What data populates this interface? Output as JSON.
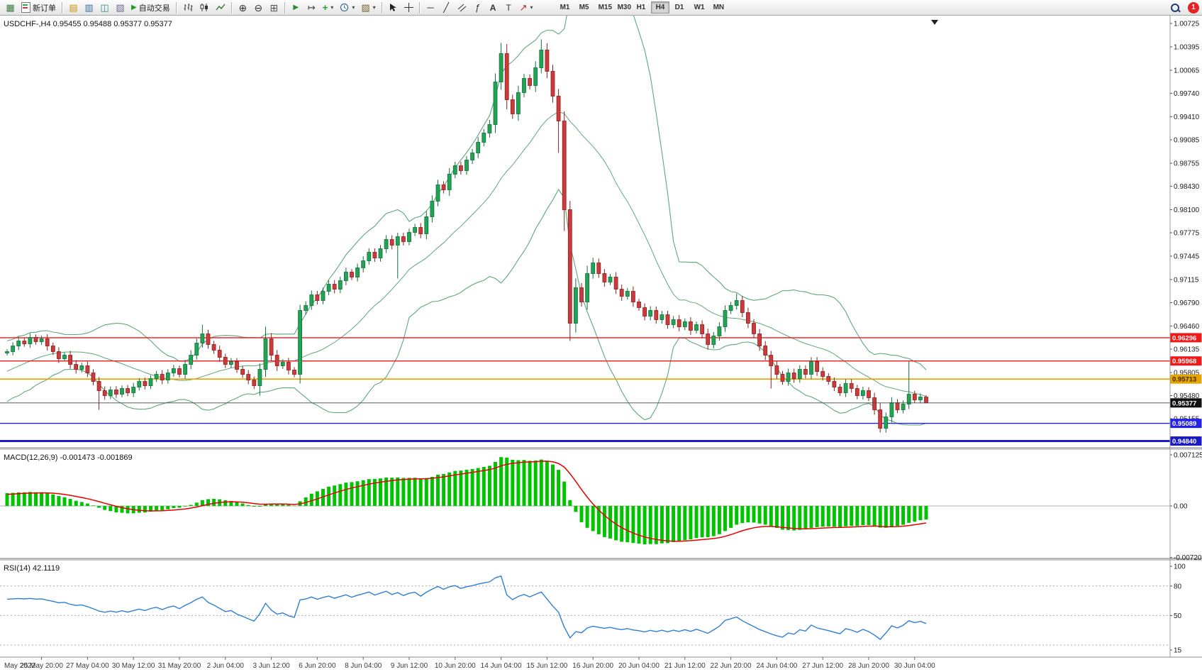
{
  "toolbar": {
    "new_order_label": "新订单",
    "auto_trading_label": "自动交易",
    "timeframes": [
      "M1",
      "M5",
      "M15",
      "M30",
      "H1",
      "H4",
      "D1",
      "W1",
      "MN"
    ],
    "active_timeframe": "H4",
    "notification_badge": "1",
    "icon_glyphs": {
      "new_chart": "▦",
      "profiles": "▤",
      "market_watch": "▥",
      "data_window": "◫",
      "navigator": "▧",
      "auto_play": "▶",
      "zoom_in": "⊕",
      "zoom_out": "⊖",
      "tile": "⊞",
      "auto_scroll": "▶",
      "shift": "↦",
      "indicators": "+",
      "templates": "▨",
      "hline": "─",
      "trend": "╱",
      "fibo": "ƒ",
      "text": "A",
      "label": "T",
      "arrows": "↗",
      "caret": "▾"
    }
  },
  "chart": {
    "title_line": "USDCHF-,H4  0.95455 0.95488 0.95377 0.95377",
    "macd_label_line": "MACD(12,26,9) -0.001473 -0.001869",
    "rsi_label_line": "RSI(14) 42.1119"
  },
  "chart_data": {
    "type": "candlestick",
    "symbol": "USDCHF-",
    "period": "H4",
    "ohlc_current": {
      "open": "0.95455",
      "high": "0.95488",
      "low": "0.95377",
      "close": "0.95377"
    },
    "ylim": [
      0.9474,
      1.0083
    ],
    "price_axis_labels": [
      "1.00725",
      "1.00395",
      "1.00065",
      "0.99740",
      "0.99410",
      "0.99085",
      "0.98755",
      "0.98430",
      "0.98100",
      "0.97775",
      "0.97445",
      "0.97115",
      "0.96790",
      "0.96460",
      "0.96135",
      "0.95805",
      "0.95480",
      "0.95155"
    ],
    "price_lines": [
      {
        "price": 0.96296,
        "label": "0.96296",
        "color": "#f01818",
        "width": 1.4,
        "text": "#ffffff"
      },
      {
        "price": 0.95968,
        "label": "0.95968",
        "color": "#f01818",
        "width": 1.4,
        "text": "#ffffff"
      },
      {
        "price": 0.95713,
        "label": "0.95713",
        "color": "#e8a400",
        "width": 1.7,
        "text": "#3a2b00"
      },
      {
        "price": 0.95089,
        "label": "0.95089",
        "color": "#2222e8",
        "width": 1.4,
        "text": "#ffffff"
      },
      {
        "price": 0.9484,
        "label": "0.94840",
        "color": "#1a1ac8",
        "width": 3.0,
        "text": "#ffffff"
      }
    ],
    "current_price": {
      "value": 0.95377,
      "label": "0.95377",
      "color": "#111111"
    },
    "bollinger": {
      "period": 20,
      "deviation": 2
    },
    "macd": {
      "name": "MACD(12,26,9)",
      "value": -0.001473,
      "signal_value": -0.001869,
      "fast": 12,
      "slow": 26,
      "signal": 9,
      "axis_labels": [
        "0.007125",
        "0.00",
        "-0.007201"
      ]
    },
    "rsi": {
      "name": "RSI(14)",
      "value": 42.1119,
      "period": 14,
      "axis_labels": [
        "100",
        "80",
        "50",
        "15"
      ],
      "levels": [
        80,
        50,
        20
      ]
    },
    "colors": {
      "up_fill": "#22a455",
      "up_stroke": "#11703a",
      "down_fill": "#cc3b3b",
      "down_stroke": "#8f1f1f",
      "bollinger": "#5da87a",
      "macd_hist": "#00c400",
      "macd_signal": "#e60000",
      "rsi_line": "#2d7fd6"
    },
    "time_axis_labels": [
      "May 2022",
      "25 May 20:00",
      "27 May 04:00",
      "30 May 12:00",
      "31 May 20:00",
      "2 Jun 04:00",
      "3 Jun 12:00",
      "6 Jun 20:00",
      "8 Jun 04:00",
      "9 Jun 12:00",
      "10 Jun 20:00",
      "14 Jun 04:00",
      "15 Jun 12:00",
      "16 Jun 20:00",
      "20 Jun 04:00",
      "21 Jun 12:00",
      "22 Jun 20:00",
      "24 Jun 04:00",
      "27 Jun 12:00",
      "28 Jun 20:00",
      "30 Jun 04:00"
    ],
    "candles": {
      "pre_closes": [
        0.953,
        0.9522,
        0.9535,
        0.9528,
        0.954,
        0.9535,
        0.9548,
        0.9542,
        0.9555,
        0.955,
        0.9562,
        0.9556,
        0.9568,
        0.9575,
        0.957,
        0.9582,
        0.9578,
        0.959,
        0.9585,
        0.9596,
        0.9602,
        0.9595,
        0.9605,
        0.9612,
        0.9606,
        0.9608
      ],
      "closes": [
        0.961,
        0.9618,
        0.9625,
        0.9621,
        0.963,
        0.9624,
        0.9628,
        0.9618,
        0.961,
        0.96,
        0.9605,
        0.9592,
        0.9585,
        0.959,
        0.958,
        0.9568,
        0.9555,
        0.9548,
        0.9556,
        0.955,
        0.9558,
        0.9552,
        0.956,
        0.9568,
        0.9562,
        0.9572,
        0.9578,
        0.957,
        0.958,
        0.9586,
        0.9578,
        0.9592,
        0.9605,
        0.9622,
        0.9635,
        0.962,
        0.9612,
        0.9602,
        0.9592,
        0.9596,
        0.9585,
        0.9578,
        0.957,
        0.9562,
        0.9585,
        0.9628,
        0.9605,
        0.959,
        0.9595,
        0.9584,
        0.9578,
        0.9668,
        0.9675,
        0.969,
        0.9682,
        0.9695,
        0.9705,
        0.9698,
        0.971,
        0.9722,
        0.9715,
        0.9728,
        0.9738,
        0.975,
        0.9742,
        0.9755,
        0.9768,
        0.976,
        0.9772,
        0.9765,
        0.9778,
        0.9785,
        0.9776,
        0.98,
        0.9822,
        0.9845,
        0.9838,
        0.986,
        0.9872,
        0.9865,
        0.988,
        0.989,
        0.9905,
        0.9918,
        0.993,
        0.999,
        1.003,
        0.9965,
        0.9945,
        0.9975,
        0.9995,
        0.9985,
        1.001,
        1.0035,
        1.0005,
        0.997,
        0.9935,
        0.981,
        0.965,
        0.97,
        0.968,
        0.972,
        0.9735,
        0.972,
        0.9708,
        0.9715,
        0.9698,
        0.9688,
        0.9695,
        0.968,
        0.9672,
        0.966,
        0.9668,
        0.9655,
        0.9662,
        0.9648,
        0.9655,
        0.9645,
        0.9652,
        0.964,
        0.9648,
        0.9635,
        0.962,
        0.9632,
        0.9645,
        0.9668,
        0.9675,
        0.9682,
        0.9665,
        0.965,
        0.9635,
        0.9618,
        0.9605,
        0.959,
        0.9578,
        0.9568,
        0.958,
        0.9572,
        0.9585,
        0.9578,
        0.9596,
        0.9582,
        0.9575,
        0.9568,
        0.956,
        0.9552,
        0.9565,
        0.9558,
        0.9548,
        0.9555,
        0.9545,
        0.9528,
        0.9502,
        0.9518,
        0.9538,
        0.9528,
        0.9536,
        0.955,
        0.9542,
        0.9546,
        0.95377
      ],
      "wick_overrides": {
        "16": [
          null,
          0.9528
        ],
        "34": [
          0.9648,
          null
        ],
        "44": [
          null,
          0.9548
        ],
        "45": [
          0.9645,
          null
        ],
        "51": [
          0.9676,
          0.9565
        ],
        "68": [
          null,
          0.9713
        ],
        "86": [
          1.0045,
          null
        ],
        "93": [
          1.005,
          null
        ],
        "96": [
          null,
          0.989
        ],
        "97": [
          null,
          0.978
        ],
        "98": [
          null,
          0.9625
        ],
        "127": [
          0.9692,
          null
        ],
        "133": [
          null,
          0.9558
        ],
        "152": [
          null,
          0.9496
        ],
        "157": [
          0.9596,
          null
        ],
        "160": [
          0.95488,
          0.95377
        ]
      }
    }
  }
}
